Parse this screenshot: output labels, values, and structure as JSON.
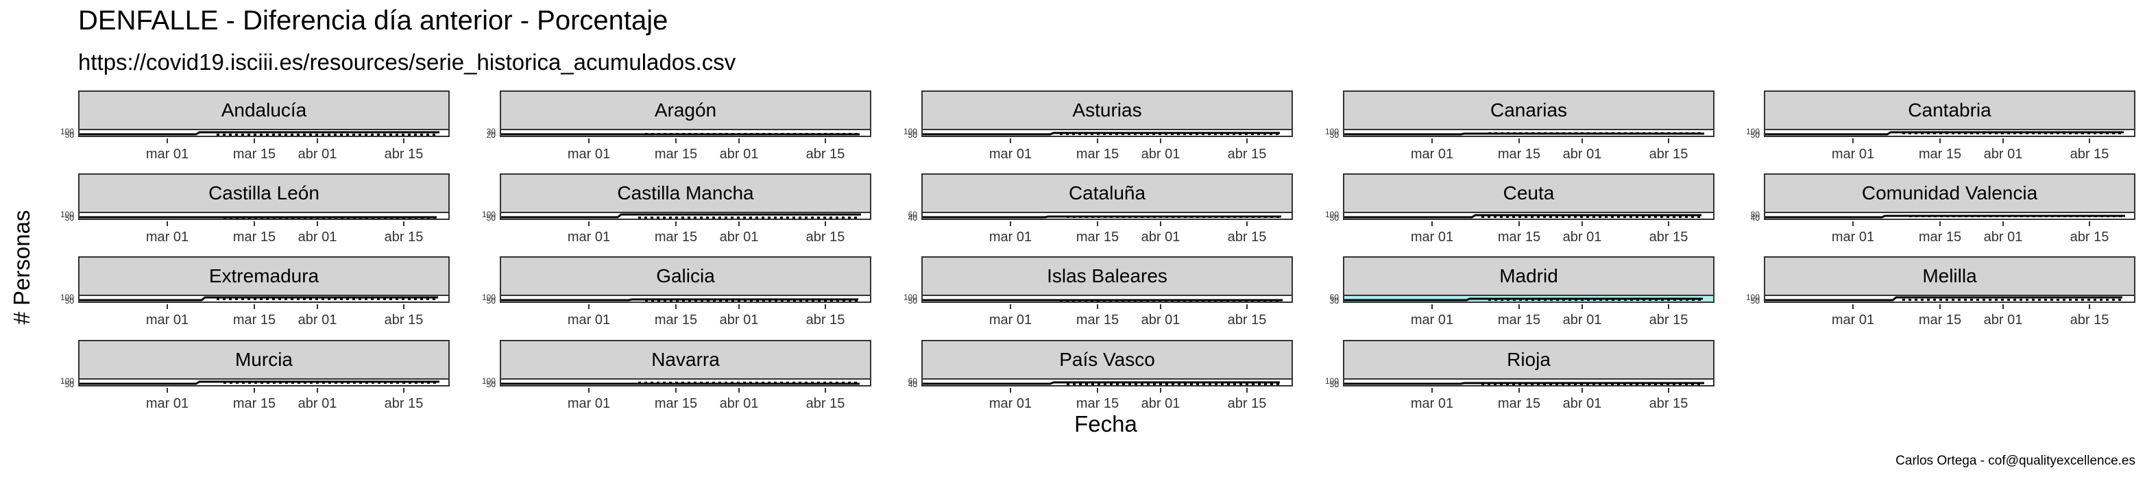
{
  "title": "DENFALLE - Diferencia día anterior - Porcentaje",
  "subtitle": "https://covid19.isciii.es/resources/serie_historica_acumulados.csv",
  "caption": "Carlos Ortega - cof@qualityexcellence.es",
  "highlight_color": "#aef0ee",
  "chart_data": {
    "type": "line",
    "xlabel": "Fecha",
    "ylabel": "# Personas",
    "x_ticks": [
      "mar 01",
      "mar 15",
      "abr 01",
      "abr 15"
    ],
    "x_range": [
      "2020-02-20",
      "2020-04-30"
    ],
    "facets": [
      {
        "name": "Andalucía",
        "y_ticks": [
          "100",
          "50",
          "0"
        ]
      },
      {
        "name": "Aragón",
        "y_ticks": [
          "30",
          "20",
          "0"
        ]
      },
      {
        "name": "Asturias",
        "y_ticks": [
          "100",
          "50",
          "0"
        ]
      },
      {
        "name": "Canarias",
        "y_ticks": [
          "100",
          "50",
          "0"
        ]
      },
      {
        "name": "Cantabria",
        "y_ticks": [
          "100",
          "50",
          "0"
        ]
      },
      {
        "name": "Castilla León",
        "y_ticks": [
          "100",
          "50",
          "0"
        ]
      },
      {
        "name": "Castilla Mancha",
        "y_ticks": [
          "100",
          "50",
          "0"
        ]
      },
      {
        "name": "Cataluña",
        "y_ticks": [
          "60",
          "40",
          "0"
        ]
      },
      {
        "name": "Ceuta",
        "y_ticks": [
          "100",
          "50",
          "0"
        ]
      },
      {
        "name": "Comunidad Valencia",
        "y_ticks": [
          "80",
          "40",
          "0"
        ]
      },
      {
        "name": "Extremadura",
        "y_ticks": [
          "100",
          "50",
          "0"
        ]
      },
      {
        "name": "Galicia",
        "y_ticks": [
          "100",
          "50",
          "0"
        ]
      },
      {
        "name": "Islas Baleares",
        "y_ticks": [
          "100",
          "50",
          "0"
        ]
      },
      {
        "name": "Madrid",
        "y_ticks": [
          "60",
          "30",
          "0"
        ],
        "highlighted": true
      },
      {
        "name": "Melilla",
        "y_ticks": [
          "100",
          "50",
          "0"
        ]
      },
      {
        "name": "Murcia",
        "y_ticks": [
          "100",
          "50",
          "0"
        ]
      },
      {
        "name": "Navarra",
        "y_ticks": [
          "100",
          "50",
          "0"
        ]
      },
      {
        "name": "País Vasco",
        "y_ticks": [
          "60",
          "40",
          "0"
        ]
      },
      {
        "name": "Rioja",
        "y_ticks": [
          "100",
          "50",
          "0"
        ]
      }
    ]
  }
}
